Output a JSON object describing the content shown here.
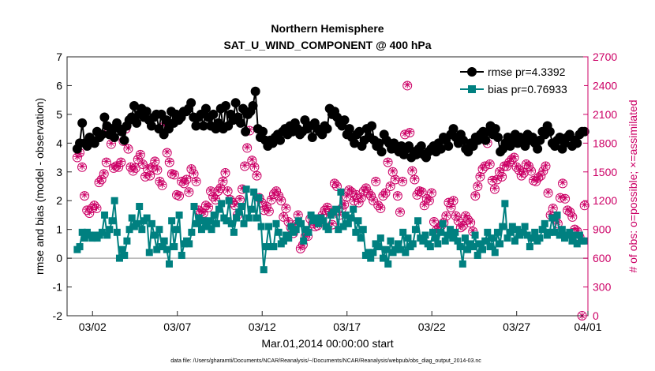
{
  "chart_data": {
    "type": "line",
    "title": "Northern Hemisphere",
    "subtitle": "SAT_U_WIND_COMPONENT @ 400 hPa",
    "xlabel": "Mar.01,2014 00:00:00 start",
    "ylabel": "rmse and bias (model - observation)",
    "ylabel_right": "# of obs: o=possible; ×=assimilated",
    "footnote": "data file: /Users/gharamti/Documents/NCAR/Reanalysis/~/Documents/NCAR/Reanalysis/webpub/obs_diag_output_2014-03.nc",
    "xlim": [
      0.5,
      31.2
    ],
    "ylim": [
      -2,
      7
    ],
    "ylim_right": [
      0,
      2700
    ],
    "x_ticks": [
      2,
      7,
      12,
      17,
      22,
      27,
      32
    ],
    "x_tick_labels": [
      "03/02",
      "03/07",
      "03/12",
      "03/17",
      "03/22",
      "03/27",
      "04/01"
    ],
    "y_ticks": [
      -2,
      -1,
      0,
      1,
      2,
      3,
      4,
      5,
      6,
      7
    ],
    "y_tick_labels": [
      "-2",
      "-1",
      "0",
      "1",
      "2",
      "3",
      "4",
      "5",
      "6",
      "7"
    ],
    "y_ticks_right": [
      0,
      300,
      600,
      900,
      1200,
      1500,
      1800,
      2100,
      2400,
      2700
    ],
    "y_tick_labels_right": [
      "0",
      "300",
      "600",
      "900",
      "1200",
      "1500",
      "1800",
      "2100",
      "2400",
      "2700"
    ],
    "legend_position": "top-right",
    "colors": {
      "rmse": "#000000",
      "bias": "#008080",
      "obs": "#cc0066",
      "zero_line": "#b3b3b3"
    },
    "series": [
      {
        "name": "rmse pr=4.3392",
        "axis": "left",
        "marker": "circle",
        "values": [
          3.8,
          4.0,
          4.7,
          4.0,
          3.9,
          4.2,
          4.1,
          4.0,
          4.4,
          4.2,
          4.3,
          4.9,
          4.6,
          4.3,
          4.5,
          4.2,
          4.7,
          4.5,
          4.4,
          4.1,
          4.6,
          4.8,
          4.9,
          5.3,
          4.7,
          5.0,
          5.2,
          4.9,
          5.1,
          4.8,
          4.6,
          4.9,
          5.0,
          4.5,
          5.0,
          4.3,
          4.8,
          4.5,
          5.1,
          4.7,
          5.0,
          4.8,
          4.9,
          5.1,
          5.1,
          5.2,
          5.4,
          4.9,
          4.6,
          4.9,
          5.0,
          4.6,
          5.2,
          4.9,
          4.6,
          5.0,
          4.5,
          4.7,
          5.2,
          4.5,
          5.3,
          4.6,
          5.0,
          4.8,
          5.4,
          4.9,
          4.7,
          5.2,
          4.4,
          5.0,
          5.1,
          5.3,
          5.8,
          4.5,
          4.2,
          4.4,
          4.1,
          3.9,
          4.1,
          4.0,
          4.2,
          4.3,
          4.1,
          4.4,
          4.5,
          4.3,
          4.6,
          4.4,
          4.7,
          4.5,
          4.3,
          4.4,
          4.8,
          4.5,
          4.6,
          4.2,
          4.7,
          4.5,
          4.4,
          4.3,
          4.6,
          4.5,
          5.2,
          5.0,
          5.1,
          4.9,
          4.7,
          4.6,
          4.8,
          4.3,
          4.5,
          4.2,
          4.0,
          4.3,
          4.4,
          3.9,
          4.1,
          4.5,
          4.2,
          4.6,
          4.1,
          3.9,
          4.0,
          3.7,
          4.3,
          4.1,
          4.0,
          3.8,
          4.0,
          3.8,
          3.7,
          3.9,
          3.6,
          3.8,
          3.9,
          3.5,
          3.7,
          3.6,
          3.8,
          3.9,
          3.6,
          3.5,
          3.7,
          3.8,
          3.9,
          3.7,
          4.0,
          3.8,
          4.2,
          4.1,
          3.9,
          4.3,
          4.5,
          4.2,
          4.0,
          4.3,
          4.1,
          3.8,
          3.7,
          4.0,
          3.9,
          4.2,
          4.1,
          4.3,
          4.4,
          4.1,
          4.4,
          4.6,
          4.3,
          4.5,
          4.2,
          3.7,
          3.8,
          4.0,
          4.2,
          3.9,
          4.1,
          4.3,
          4.0,
          4.2,
          4.1,
          3.9,
          4.3,
          4.1,
          4.2,
          4.0,
          3.8,
          4.1,
          4.4,
          4.3,
          4.6,
          4.4,
          4.0,
          3.9,
          4.1,
          4.2,
          3.8,
          4.0,
          4.2,
          4.3,
          3.9,
          4.1,
          4.0,
          4.3,
          4.4,
          4.4
        ]
      },
      {
        "name": "bias pr=0.76933",
        "axis": "left",
        "marker": "square",
        "values": [
          0.3,
          0.4,
          0.9,
          0.7,
          0.9,
          0.8,
          0.7,
          0.8,
          0.7,
          0.8,
          0.9,
          1.5,
          0.8,
          1.0,
          1.3,
          2.0,
          0.9,
          0.0,
          0.3,
          0.1,
          0.6,
          1.0,
          1.4,
          1.1,
          1.2,
          1.8,
          1.0,
          1.3,
          1.4,
          0.2,
          1.2,
          0.8,
          0.3,
          1.0,
          0.4,
          0.6,
          0.3,
          -0.2,
          1.3,
          0.4,
          1.0,
          1.5,
          0.1,
          0.5,
          0.6,
          0.5,
          0.9,
          1.8,
          1.2,
          1.4,
          1.0,
          1.3,
          1.1,
          1.3,
          1.0,
          1.5,
          1.2,
          1.7,
          1.9,
          1.4,
          1.3,
          2.0,
          1.2,
          0.9,
          1.4,
          1.6,
          1.8,
          1.2,
          2.4,
          1.4,
          1.7,
          2.3,
          1.4,
          2.1,
          1.1,
          -0.4,
          0.4,
          1.1,
          0.4,
          0.4,
          1.2,
          0.9,
          0.5,
          0.6,
          0.8,
          0.7,
          1.1,
          0.9,
          1.0,
          1.3,
          1.2,
          0.6,
          1.0,
          0.9,
          1.5,
          1.3,
          1.4,
          1.2,
          1.4,
          1.3,
          1.1,
          1.0,
          1.5,
          1.6,
          1.7,
          1.0,
          2.3,
          1.1,
          1.5,
          1.2,
          1.4,
          1.7,
          0.9,
          1.3,
          0.7,
          1.0,
          0.1,
          0.2,
          0.0,
          0.2,
          0.5,
          0.4,
          0.7,
          0.0,
          0.3,
          -0.2,
          0.6,
          0.2,
          0.3,
          0.5,
          0.3,
          0.9,
          0.2,
          0.7,
          0.4,
          0.5,
          1.0,
          1.3,
          0.7,
          0.6,
          0.8,
          0.5,
          0.4,
          0.9,
          0.7,
          0.5,
          0.9,
          1.2,
          0.6,
          0.8,
          1.0,
          0.7,
          0.9,
          0.6,
          0.4,
          -0.2,
          0.7,
          0.3,
          0.5,
          0.4,
          0.8,
          0.1,
          0.5,
          0.3,
          0.6,
          0.9,
          0.4,
          0.7,
          0.2,
          0.9,
          0.5,
          1.1,
          1.9,
          0.7,
          0.9,
          1.1,
          0.6,
          1.0,
          0.8,
          0.9,
          1.1,
          0.8,
          0.4,
          0.7,
          0.9,
          0.6,
          0.7,
          1.0,
          1.2,
          0.8,
          0.9,
          1.4,
          0.9,
          1.5,
          0.8,
          1.0,
          0.7,
          0.8,
          0.9,
          0.6,
          0.8,
          0.5,
          0.8,
          0.6,
          0.6
        ]
      },
      {
        "name": "possible",
        "axis": "right",
        "marker": "circle-open",
        "values": [
          1650,
          1700,
          1550,
          1250,
          1100,
          1070,
          1120,
          1150,
          1120,
          1390,
          1420,
          1480,
          1600,
          1950,
          1790,
          1540,
          1560,
          1550,
          1600,
          1820,
          1950,
          1740,
          1550,
          1510,
          1540,
          1630,
          1680,
          1580,
          1450,
          1530,
          1460,
          1550,
          1610,
          1520,
          1400,
          1360,
          1980,
          1700,
          1600,
          1480,
          1470,
          1260,
          1250,
          1400,
          1380,
          1420,
          1290,
          1530,
          1480,
          1400,
          1100,
          1080,
          1070,
          1150,
          1130,
          1300,
          1240,
          1210,
          1300,
          1330,
          1400,
          1490,
          1300,
          1210,
          1180,
          1150,
          1050,
          1210,
          1320,
          1560,
          1750,
          1930,
          1620,
          1550,
          1460,
          1230,
          1180,
          1100,
          1140,
          1090,
          1210,
          1270,
          1300,
          1250,
          1200,
          1030,
          1120,
          980,
          920,
          860,
          950,
          1050,
          700,
          740,
          830,
          830,
          1010,
          960,
          930,
          940,
          1000,
          1050,
          1100,
          1130,
          1080,
          950,
          1380,
          1350,
          1050,
          1120,
          1160,
          1240,
          1310,
          1290,
          1200,
          1260,
          1180,
          1230,
          1300,
          1330,
          1280,
          1250,
          1200,
          1400,
          1150,
          1120,
          1250,
          1280,
          1600,
          1350,
          1500,
          1420,
          1250,
          1080,
          1400,
          1890,
          2400,
          1910,
          1510,
          1420,
          1260,
          1300,
          1290,
          1150,
          1220,
          1200,
          1280,
          980,
          890,
          920,
          940,
          970,
          1040,
          1180,
          1130,
          1200,
          1040,
          990,
          920,
          940,
          1040,
          1000,
          970,
          880,
          1250,
          1350,
          1450,
          1530,
          1560,
          1800,
          1580,
          1410,
          1320,
          1420,
          1500,
          1450,
          1560,
          1560,
          1600,
          1630,
          1650,
          1550,
          1520,
          1460,
          1490,
          1580,
          1560,
          1510,
          1410,
          1400,
          1440,
          1460,
          1510,
          1560,
          1280,
          1050,
          1120,
          1000,
          960,
          1230,
          1380,
          1220,
          1100,
          1080,
          1030,
          900,
          880,
          820,
          0,
          1150
        ]
      },
      {
        "name": "assimilated",
        "axis": "right",
        "marker": "asterisk",
        "values": [
          1660,
          1690,
          1560,
          1260,
          1110,
          1080,
          1130,
          1160,
          1130,
          1400,
          1430,
          1490,
          1610,
          1960,
          1800,
          1550,
          1570,
          1560,
          1610,
          1830,
          1960,
          1750,
          1560,
          1520,
          1550,
          1640,
          1690,
          1590,
          1460,
          1540,
          1470,
          1560,
          1620,
          1530,
          1410,
          1370,
          1990,
          1710,
          1610,
          1490,
          1480,
          1270,
          1260,
          1410,
          1390,
          1430,
          1300,
          1540,
          1490,
          1410,
          1110,
          1090,
          1080,
          1160,
          1140,
          1310,
          1250,
          1220,
          1310,
          1340,
          1410,
          1500,
          1310,
          1220,
          1190,
          1160,
          1060,
          1220,
          1330,
          1570,
          1760,
          1940,
          1630,
          1560,
          1470,
          1240,
          1190,
          1110,
          1150,
          1100,
          1220,
          1280,
          1310,
          1260,
          1210,
          1040,
          1130,
          990,
          930,
          870,
          960,
          1060,
          710,
          750,
          840,
          840,
          1020,
          970,
          940,
          950,
          1010,
          1060,
          1110,
          1140,
          1090,
          960,
          1390,
          1360,
          1060,
          1130,
          1170,
          1250,
          1320,
          1300,
          1210,
          1270,
          1190,
          1240,
          1310,
          1340,
          1290,
          1260,
          1210,
          1410,
          1160,
          1130,
          1260,
          1290,
          1610,
          1360,
          1510,
          1430,
          1260,
          1090,
          1410,
          1900,
          2410,
          1920,
          1520,
          1430,
          1270,
          1310,
          1300,
          1160,
          1230,
          1210,
          1290,
          990,
          900,
          930,
          950,
          980,
          1050,
          1190,
          1140,
          1210,
          1050,
          1000,
          930,
          950,
          1050,
          1010,
          980,
          890,
          1260,
          1360,
          1460,
          1540,
          1570,
          1810,
          1590,
          1420,
          1330,
          1430,
          1510,
          1460,
          1570,
          1570,
          1610,
          1640,
          1660,
          1560,
          1530,
          1470,
          1500,
          1590,
          1570,
          1520,
          1420,
          1410,
          1450,
          1470,
          1520,
          1570,
          1290,
          1060,
          1130,
          1010,
          970,
          1240,
          1390,
          1230,
          1110,
          1090,
          1040,
          910,
          890,
          830,
          0,
          1160
        ]
      }
    ]
  }
}
